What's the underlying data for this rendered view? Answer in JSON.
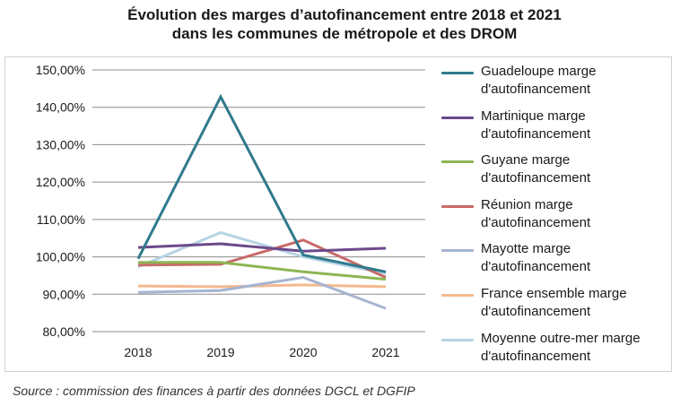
{
  "title_line1": "Évolution des marges d’autofinancement entre 2018 et 2021",
  "title_line2": "dans les communes de métropole et des DROM",
  "source": "Source : commission des finances à partir des données DGCL et DGFIP",
  "chart_data": {
    "type": "line",
    "x": [
      "2018",
      "2019",
      "2020",
      "2021"
    ],
    "ylim": [
      80,
      150
    ],
    "yticks": [
      "80,00%",
      "90,00%",
      "100,00%",
      "110,00%",
      "120,00%",
      "130,00%",
      "140,00%",
      "150,00%"
    ],
    "ytick_values": [
      80,
      90,
      100,
      110,
      120,
      130,
      140,
      150
    ],
    "grid": true,
    "legend_position": "right",
    "series": [
      {
        "name_line1": "Guadeloupe marge",
        "name_line2": "d'autofinancement",
        "color": "#2f7a8c",
        "values": [
          99.5,
          142.8,
          100.5,
          96.0
        ]
      },
      {
        "name_line1": "Martinique marge",
        "name_line2": "d'autofinancement",
        "color": "#6b4a8a",
        "values": [
          102.5,
          103.5,
          101.5,
          102.3
        ]
      },
      {
        "name_line1": "Guyane marge",
        "name_line2": "d'autofinancement",
        "color": "#8db552",
        "values": [
          98.5,
          98.5,
          96.0,
          94.0
        ]
      },
      {
        "name_line1": "Réunion marge",
        "name_line2": "d'autofinancement",
        "color": "#c86a68",
        "values": [
          97.8,
          98.0,
          104.5,
          94.5
        ]
      },
      {
        "name_line1": "Mayotte marge",
        "name_line2": "d'autofinancement",
        "color": "#a5b4d0",
        "values": [
          90.5,
          91.0,
          94.5,
          86.2
        ]
      },
      {
        "name_line1": "France ensemble  marge",
        "name_line2": "d'autofinancement",
        "color": "#f4b98e",
        "values": [
          92.2,
          92.0,
          92.5,
          92.0
        ]
      },
      {
        "name_line1": "Moyenne outre-mer marge",
        "name_line2": "d'autofinancement",
        "color": "#b7d3e4",
        "values": [
          97.3,
          106.5,
          100.0,
          95.5
        ]
      }
    ]
  }
}
